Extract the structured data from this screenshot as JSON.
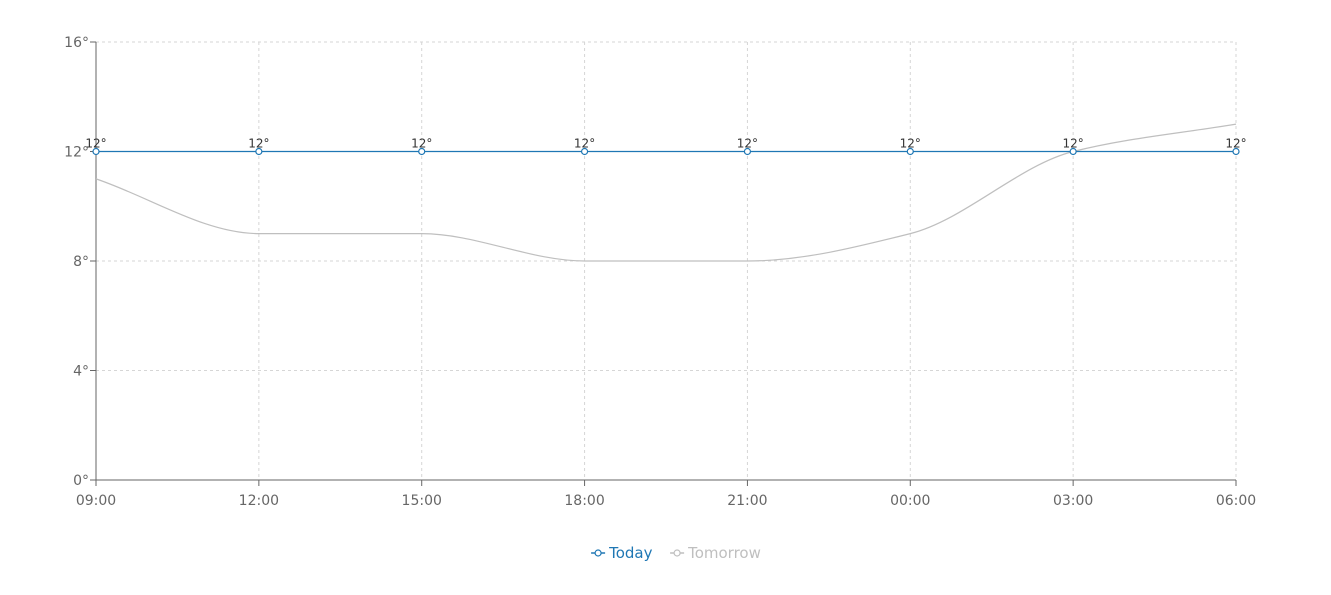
{
  "chart_data": {
    "type": "line",
    "categories": [
      "09:00",
      "12:00",
      "15:00",
      "18:00",
      "21:00",
      "00:00",
      "03:00",
      "06:00"
    ],
    "yticks": [
      "0°",
      "4°",
      "8°",
      "12°",
      "16°"
    ],
    "ylim": [
      0,
      16
    ],
    "grid": true,
    "legend_position": "bottom-center",
    "series": [
      {
        "name": "Today",
        "values": [
          12,
          12,
          12,
          12,
          12,
          12,
          12,
          12
        ],
        "data_labels": [
          "12°",
          "12°",
          "12°",
          "12°",
          "12°",
          "12°",
          "12°",
          "12°"
        ],
        "color": "#1f77b4",
        "markers": true
      },
      {
        "name": "Tomorrow",
        "values": [
          11,
          9,
          9,
          8,
          8,
          9,
          12,
          13
        ],
        "color": "#bfbfbf",
        "markers": false
      }
    ]
  }
}
